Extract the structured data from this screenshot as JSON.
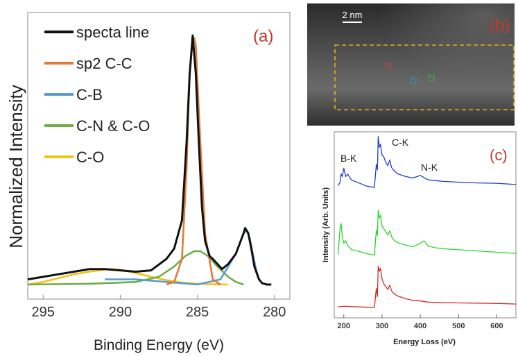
{
  "chart_data": [
    {
      "panel": "a",
      "type": "line",
      "panel_label": "(a)",
      "xlabel": "Binding Energy (eV)",
      "ylabel": "Normalized Intensity",
      "xlim": [
        296,
        279
      ],
      "x_reversed": true,
      "ylim": [
        0,
        1.0
      ],
      "xticks": [
        "295",
        "290",
        "285",
        "280"
      ],
      "xtick_values": [
        295,
        290,
        285,
        280
      ],
      "legend_placement": "top-left",
      "series": [
        {
          "name": "specta line",
          "color": "#111111",
          "x": [
            296,
            295,
            294,
            293,
            292,
            291,
            290,
            289,
            288,
            287,
            286.5,
            286,
            285.7,
            285.5,
            285.3,
            285.1,
            284.9,
            284.7,
            284.5,
            284.2,
            284,
            283.7,
            283.4,
            283,
            282.5,
            282,
            281.9,
            281.7,
            281.5,
            281.3,
            281,
            280.8,
            280.5,
            280.2
          ],
          "y": [
            0.02,
            0.03,
            0.04,
            0.05,
            0.06,
            0.06,
            0.055,
            0.05,
            0.055,
            0.1,
            0.14,
            0.25,
            0.55,
            0.82,
            0.97,
            0.82,
            0.55,
            0.3,
            0.17,
            0.11,
            0.1,
            0.08,
            0.06,
            0.08,
            0.12,
            0.2,
            0.22,
            0.2,
            0.14,
            0.07,
            0.02,
            0.005,
            0,
            0
          ]
        },
        {
          "name": "sp2 C-C",
          "color": "#e07b39",
          "x": [
            287,
            286.5,
            286,
            285.7,
            285.5,
            285.3,
            285.2,
            285.1,
            285,
            284.8,
            284.5,
            284,
            283.5
          ],
          "y": [
            0,
            0.01,
            0.1,
            0.45,
            0.82,
            0.95,
            0.96,
            0.93,
            0.8,
            0.55,
            0.2,
            0.02,
            0
          ]
        },
        {
          "name": "C-B",
          "color": "#5b9bd5",
          "x": [
            291,
            289,
            287,
            285,
            283.5,
            282.5,
            282,
            281.8,
            281.6,
            281.4,
            281.2,
            281,
            280.8,
            280.5
          ],
          "y": [
            0.02,
            0.02,
            0.01,
            0,
            0.02,
            0.12,
            0.2,
            0.21,
            0.18,
            0.12,
            0.06,
            0.02,
            0.005,
            0
          ]
        },
        {
          "name": "C-N & C-O",
          "color": "#70ad47",
          "x": [
            296,
            292,
            289,
            287.5,
            286.5,
            285.8,
            285.2,
            284.8,
            284.3,
            283.7,
            283,
            282.5,
            282
          ],
          "y": [
            0,
            0.003,
            0.01,
            0.03,
            0.07,
            0.11,
            0.13,
            0.13,
            0.11,
            0.07,
            0.03,
            0.01,
            0
          ]
        },
        {
          "name": "C-O",
          "color": "#f2c314",
          "x": [
            296,
            295,
            294,
            293,
            292,
            291,
            290.5,
            290,
            289,
            288,
            287,
            286,
            285,
            284,
            283
          ],
          "y": [
            0,
            0.01,
            0.025,
            0.04,
            0.05,
            0.058,
            0.06,
            0.058,
            0.045,
            0.03,
            0.017,
            0.008,
            0.003,
            0.001,
            0
          ]
        }
      ]
    },
    {
      "panel": "c",
      "type": "line",
      "panel_label": "(c)",
      "xlabel": "Energy Loss (eV)",
      "ylabel": "Intensity (Arb. Units)",
      "xlim": [
        175,
        650
      ],
      "xticks": [
        "200",
        "300",
        "400",
        "500",
        "600"
      ],
      "xtick_values": [
        200,
        300,
        400,
        500,
        600
      ],
      "ylim": [
        0,
        3.2
      ],
      "annotations": [
        "B-K",
        "C-K",
        "N-K"
      ],
      "series": [
        {
          "color": "#1f3dd6",
          "x": [
            185,
            190,
            193,
            196,
            200,
            205,
            210,
            220,
            240,
            260,
            280,
            285,
            288,
            290,
            293,
            296,
            300,
            305,
            310,
            315,
            320,
            325,
            330,
            340,
            360,
            380,
            400,
            420,
            440,
            460,
            500,
            550,
            600,
            650
          ],
          "y": [
            2.3,
            2.35,
            2.5,
            2.45,
            2.6,
            2.45,
            2.5,
            2.4,
            2.35,
            2.3,
            2.28,
            2.7,
            2.6,
            3.2,
            3.0,
            3.05,
            2.85,
            2.8,
            2.7,
            2.65,
            2.75,
            2.62,
            2.58,
            2.52,
            2.48,
            2.45,
            2.5,
            2.42,
            2.4,
            2.38,
            2.36,
            2.34,
            2.33,
            2.32
          ]
        },
        {
          "color": "#26d926",
          "x": [
            185,
            190,
            193,
            196,
            200,
            205,
            210,
            220,
            240,
            260,
            280,
            285,
            288,
            290,
            293,
            296,
            300,
            305,
            310,
            315,
            320,
            325,
            330,
            340,
            360,
            380,
            400,
            410,
            420,
            440,
            460,
            500,
            550,
            600,
            650
          ],
          "y": [
            1.05,
            1.5,
            1.6,
            1.35,
            1.25,
            1.3,
            1.22,
            1.15,
            1.12,
            1.08,
            1.05,
            1.5,
            1.4,
            1.85,
            1.7,
            1.75,
            1.55,
            1.5,
            1.45,
            1.4,
            1.48,
            1.38,
            1.33,
            1.28,
            1.24,
            1.2,
            1.26,
            1.3,
            1.2,
            1.16,
            1.14,
            1.12,
            1.1,
            1.08,
            1.07
          ]
        },
        {
          "color": "#d62a2a",
          "x": [
            185,
            200,
            220,
            240,
            260,
            280,
            285,
            288,
            290,
            293,
            296,
            300,
            305,
            310,
            315,
            320,
            325,
            330,
            340,
            360,
            380,
            400,
            420,
            440,
            460,
            500,
            550,
            600,
            650
          ],
          "y": [
            0.1,
            0.1,
            0.1,
            0.1,
            0.1,
            0.1,
            0.45,
            0.3,
            0.85,
            0.75,
            0.8,
            0.6,
            0.5,
            0.45,
            0.4,
            0.48,
            0.38,
            0.34,
            0.3,
            0.26,
            0.23,
            0.22,
            0.2,
            0.19,
            0.18,
            0.17,
            0.16,
            0.15,
            0.15
          ]
        }
      ]
    }
  ],
  "panel_b": {
    "label": "(b)",
    "scale_bar": "2 nm",
    "markers": [
      {
        "color": "#e03a3a",
        "fx": 0.3,
        "fy": 0.33
      },
      {
        "color": "#27a6e0",
        "fx": 0.44,
        "fy": 0.55
      },
      {
        "color": "#2ed42e",
        "fx": 0.54,
        "fy": 0.51
      }
    ],
    "box_color": "#e0b020"
  }
}
